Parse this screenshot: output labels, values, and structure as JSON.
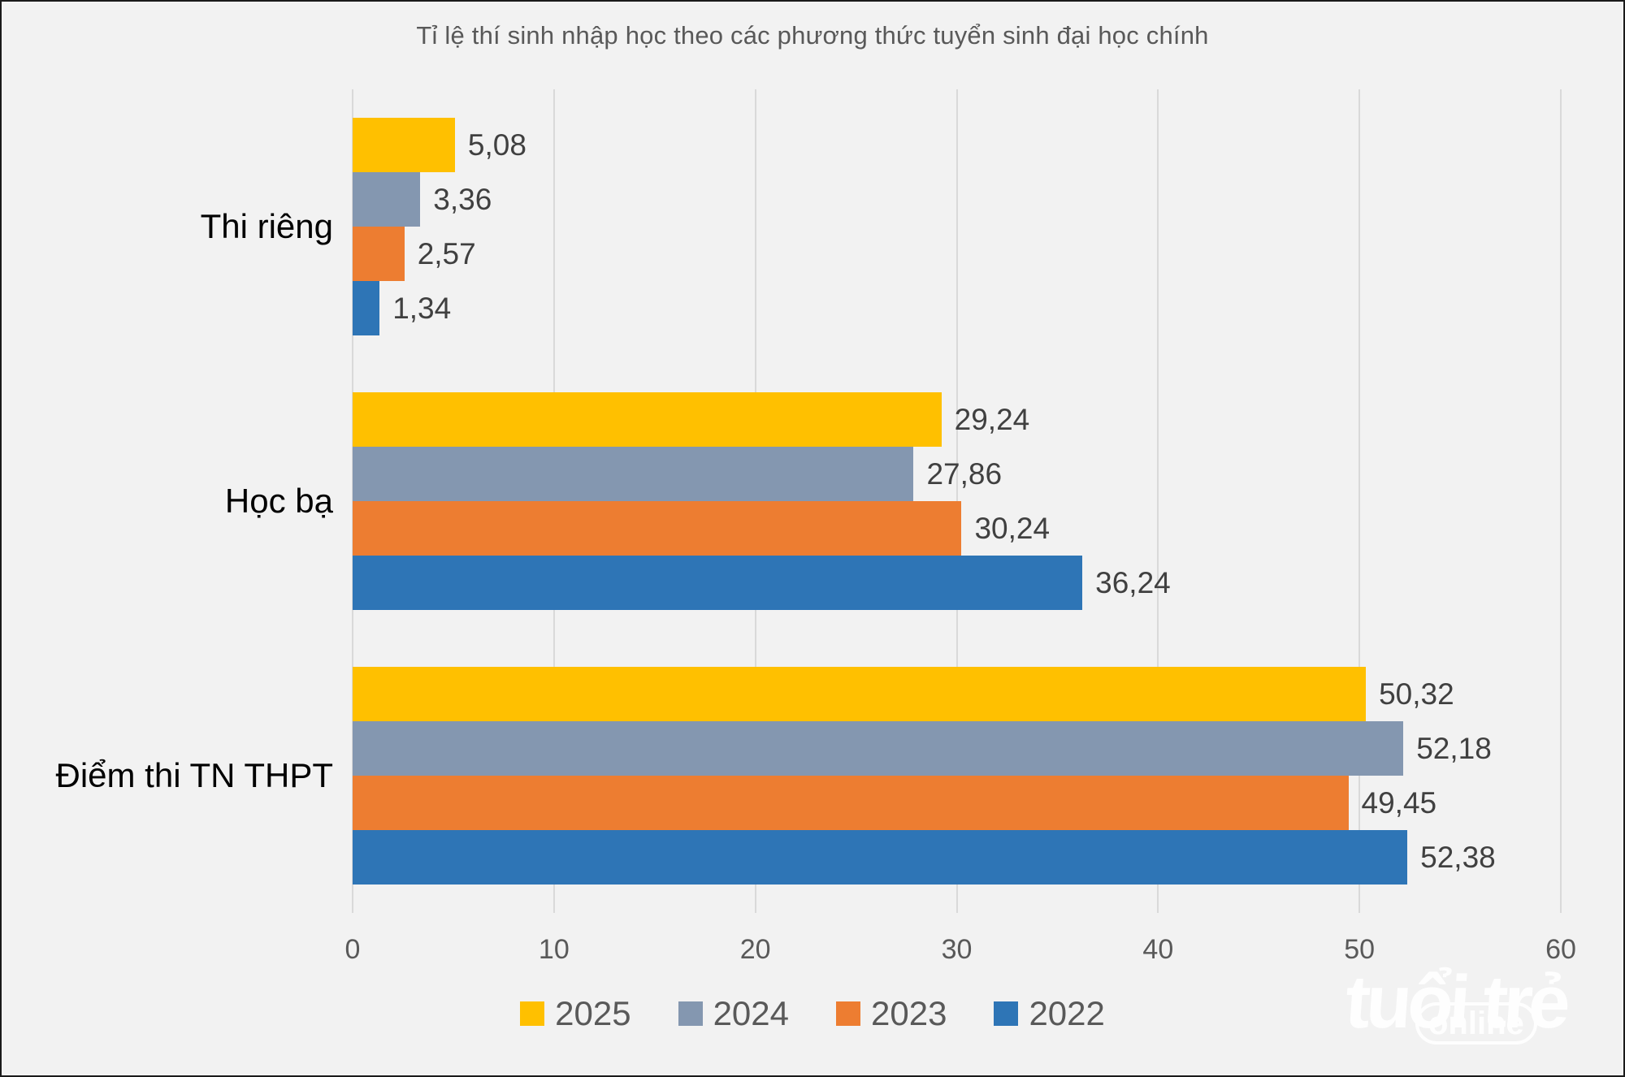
{
  "title": "Tỉ lệ thí sinh nhập học theo các phương thức tuyển sinh đại học chính",
  "colors": {
    "background": "#F2F2F2",
    "gridline": "#D9D9D9",
    "title_text": "#595959",
    "data_label_text": "#404040",
    "tick_label_text": "#595959",
    "category_label_text": "#000000"
  },
  "chart_data": {
    "type": "bar",
    "orientation": "horizontal",
    "title": "Tỉ lệ thí sinh nhập học theo các phương thức tuyển sinh đại học chính",
    "categories": [
      "Thi riêng",
      "Học bạ",
      "Điểm thi TN THPT"
    ],
    "series": [
      {
        "name": "2025",
        "color": "#FFC000",
        "values": [
          5.08,
          29.24,
          50.32
        ],
        "labels": [
          "5,08",
          "29,24",
          "50,32"
        ]
      },
      {
        "name": "2024",
        "color": "#8497B0",
        "values": [
          3.36,
          27.86,
          52.18
        ],
        "labels": [
          "3,36",
          "27,86",
          "52,18"
        ]
      },
      {
        "name": "2023",
        "color": "#ED7D31",
        "values": [
          2.57,
          30.24,
          49.45
        ],
        "labels": [
          "2,57",
          "30,24",
          "49,45"
        ]
      },
      {
        "name": "2022",
        "color": "#2E75B6",
        "values": [
          1.34,
          36.24,
          52.38
        ],
        "labels": [
          "1,34",
          "36,24",
          "52,38"
        ]
      }
    ],
    "x_ticks": [
      "0",
      "10",
      "20",
      "30",
      "40",
      "50",
      "60"
    ],
    "xlim": [
      0,
      60
    ],
    "grid": true,
    "legend_position": "bottom",
    "data_labels": "outside-end",
    "decimal_separator": ","
  },
  "watermark": {
    "line1": "tuổi trẻ",
    "line2": "online"
  }
}
